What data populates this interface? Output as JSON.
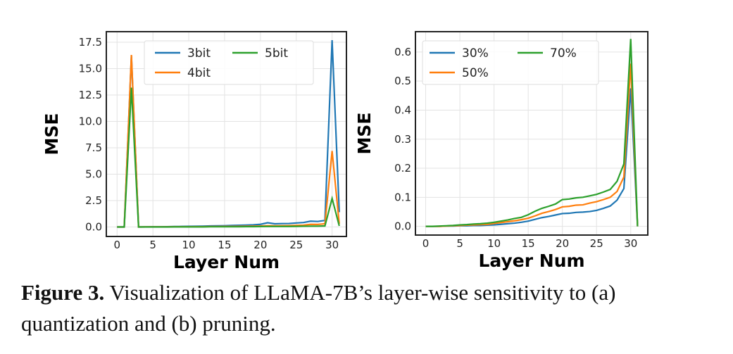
{
  "chart_data": [
    {
      "type": "line",
      "xlabel": "Layer Num",
      "ylabel": "MSE",
      "xlim": [
        -1.5,
        32
      ],
      "ylim": [
        -0.9,
        18.5
      ],
      "xticks": [
        0,
        5,
        10,
        15,
        20,
        25,
        30
      ],
      "yticks": [
        "0.0",
        "2.5",
        "5.0",
        "7.5",
        "10.0",
        "12.5",
        "15.0",
        "17.5"
      ],
      "grid": true,
      "legend": "top-center",
      "x": [
        0,
        1,
        2,
        3,
        4,
        5,
        6,
        7,
        8,
        9,
        10,
        11,
        12,
        13,
        14,
        15,
        16,
        17,
        18,
        19,
        20,
        21,
        22,
        23,
        24,
        25,
        26,
        27,
        28,
        29,
        30,
        31
      ],
      "series": [
        {
          "name": "3bit",
          "color": "#1f77b4",
          "values": [
            0,
            0,
            16.2,
            0,
            0.01,
            0.02,
            0.02,
            0.03,
            0.04,
            0.05,
            0.06,
            0.07,
            0.08,
            0.1,
            0.11,
            0.12,
            0.14,
            0.16,
            0.18,
            0.2,
            0.25,
            0.4,
            0.3,
            0.32,
            0.33,
            0.38,
            0.42,
            0.55,
            0.52,
            0.62,
            17.7,
            1.4
          ]
        },
        {
          "name": "4bit",
          "color": "#ff7f0e",
          "values": [
            0,
            0,
            16.3,
            0,
            0.01,
            0.01,
            0.01,
            0.01,
            0.02,
            0.02,
            0.02,
            0.03,
            0.03,
            0.04,
            0.04,
            0.05,
            0.05,
            0.06,
            0.07,
            0.08,
            0.09,
            0.12,
            0.11,
            0.12,
            0.13,
            0.15,
            0.17,
            0.25,
            0.24,
            0.3,
            7.2,
            0.3
          ]
        },
        {
          "name": "5bit",
          "color": "#2ca02c",
          "values": [
            0,
            0,
            13.2,
            0,
            0,
            0,
            0,
            0,
            0.01,
            0.01,
            0.01,
            0.01,
            0.01,
            0.02,
            0.02,
            0.02,
            0.02,
            0.02,
            0.03,
            0.03,
            0.04,
            0.05,
            0.05,
            0.05,
            0.05,
            0.06,
            0.07,
            0.08,
            0.08,
            0.1,
            2.7,
            0.1
          ]
        }
      ]
    },
    {
      "type": "line",
      "xlabel": "Layer Num",
      "ylabel": "MSE",
      "xlim": [
        -1.5,
        32.5
      ],
      "ylim": [
        -0.03,
        0.67
      ],
      "xticks": [
        0,
        5,
        10,
        15,
        20,
        25,
        30
      ],
      "yticks": [
        "0.0",
        "0.1",
        "0.2",
        "0.3",
        "0.4",
        "0.5",
        "0.6"
      ],
      "grid": true,
      "legend": "top-left",
      "x": [
        0,
        1,
        2,
        3,
        4,
        5,
        6,
        7,
        8,
        9,
        10,
        11,
        12,
        13,
        14,
        15,
        16,
        17,
        18,
        19,
        20,
        21,
        22,
        23,
        24,
        25,
        26,
        27,
        28,
        29,
        30,
        31
      ],
      "series": [
        {
          "name": "30%",
          "color": "#1f77b4",
          "values": [
            0,
            0,
            0,
            0.001,
            0.001,
            0.002,
            0.002,
            0.003,
            0.003,
            0.004,
            0.005,
            0.007,
            0.009,
            0.011,
            0.014,
            0.018,
            0.024,
            0.03,
            0.034,
            0.039,
            0.044,
            0.045,
            0.048,
            0.049,
            0.051,
            0.055,
            0.062,
            0.07,
            0.09,
            0.13,
            0.475,
            0
          ]
        },
        {
          "name": "50%",
          "color": "#ff7f0e",
          "values": [
            0,
            0,
            0,
            0.001,
            0.002,
            0.003,
            0.004,
            0.005,
            0.006,
            0.007,
            0.01,
            0.013,
            0.016,
            0.019,
            0.023,
            0.028,
            0.036,
            0.045,
            0.051,
            0.058,
            0.067,
            0.069,
            0.073,
            0.074,
            0.08,
            0.085,
            0.092,
            0.1,
            0.12,
            0.17,
            0.56,
            0
          ]
        },
        {
          "name": "70%",
          "color": "#2ca02c",
          "values": [
            0,
            0,
            0.001,
            0.002,
            0.003,
            0.005,
            0.006,
            0.008,
            0.009,
            0.011,
            0.014,
            0.018,
            0.022,
            0.027,
            0.031,
            0.04,
            0.052,
            0.062,
            0.069,
            0.077,
            0.092,
            0.094,
            0.098,
            0.1,
            0.105,
            0.11,
            0.118,
            0.127,
            0.155,
            0.215,
            0.645,
            0
          ]
        }
      ]
    }
  ],
  "caption": {
    "label": "Figure 3.",
    "text": " Visualization of LLaMA-7B’s layer-wise sensitivity to (a) quantization and (b) pruning."
  }
}
